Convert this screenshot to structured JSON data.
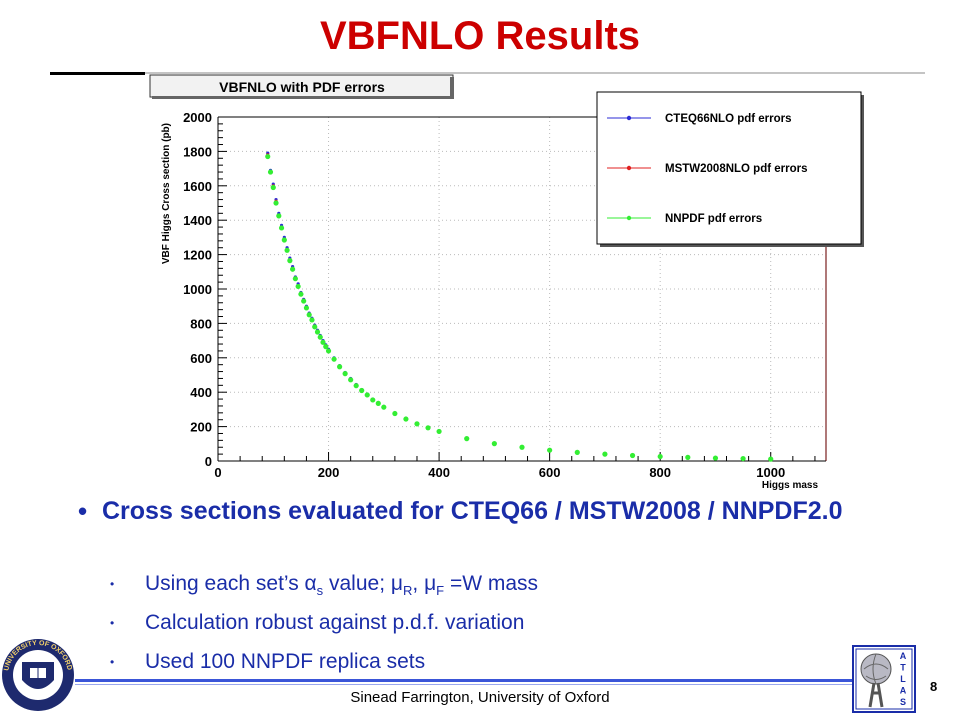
{
  "slide": {
    "title": "VBFNLO Results",
    "footer": "Sinead Farrington, University of Oxford",
    "page_number": "8",
    "bullets": {
      "main": "Cross sections evaluated for CTEQ66 / MSTW2008 / NNPDF2.0",
      "sub1_pre": "Using each set’s ",
      "sub1_alpha": "α",
      "sub1_alpha_sub": "s",
      "sub1_mid": " value; ",
      "sub1_mu": "μ",
      "sub1_mu_sub": "R",
      "sub1_sep": ", ",
      "sub1_mu2": "μ",
      "sub1_mu2_sub": "F",
      "sub1_post": " =W mass",
      "sub2": "Calculation robust against p.d.f. variation",
      "sub3": "Used 100 NNPDF replica sets"
    },
    "logos": {
      "left": "oxford-seal",
      "left_text": "UNIVERSITY OF OXFORD",
      "right": "atlas-logo",
      "right_text": "ATLAS"
    }
  },
  "chart_data": {
    "type": "scatter",
    "title": "VBFNLO with PDF errors",
    "xlabel": "Higgs mass",
    "ylabel": "VBF Higgs Cross section (pb)",
    "xlim": [
      0,
      1100
    ],
    "ylim": [
      0,
      2000
    ],
    "xticks": [
      0,
      200,
      400,
      600,
      800,
      1000
    ],
    "yticks": [
      0,
      200,
      400,
      600,
      800,
      1000,
      1200,
      1400,
      1600,
      1800,
      2000
    ],
    "grid": true,
    "legend_position": "top-right",
    "series": [
      {
        "name": "CTEQ66NLO pdf errors",
        "color": "#2b2bd6",
        "x": [
          90,
          95,
          100,
          105,
          110,
          115,
          120,
          125,
          130,
          135,
          140,
          145,
          150,
          155,
          160,
          165,
          170,
          175,
          180,
          185,
          190,
          195,
          200,
          210,
          220,
          230,
          240,
          250,
          260,
          270,
          280,
          290,
          300,
          320,
          340,
          360,
          380,
          400,
          450,
          500,
          550,
          600,
          650,
          700,
          750,
          800,
          850,
          900,
          950,
          1000
        ],
        "y": [
          1790,
          1690,
          1610,
          1520,
          1440,
          1370,
          1300,
          1240,
          1180,
          1130,
          1070,
          1030,
          980,
          940,
          900,
          860,
          830,
          790,
          760,
          730,
          700,
          675,
          650,
          600,
          555,
          515,
          480,
          445,
          415,
          390,
          360,
          340,
          318,
          280,
          248,
          220,
          197,
          176,
          134,
          104,
          82,
          65,
          52,
          42,
          34,
          28,
          23,
          19,
          16,
          13
        ]
      },
      {
        "name": "MSTW2008NLO pdf errors",
        "color": "#e02020",
        "x": [
          90,
          95,
          100,
          105,
          110,
          115,
          120,
          125,
          130,
          135,
          140,
          145,
          150,
          155,
          160,
          165,
          170,
          175,
          180,
          185,
          190,
          195,
          200,
          210,
          220,
          230,
          240,
          250,
          260,
          270,
          280,
          290,
          300,
          320,
          340,
          360,
          380,
          400,
          450,
          500,
          550,
          600,
          650,
          700,
          750,
          800,
          850,
          900,
          950,
          1000
        ],
        "y": [
          1780,
          1680,
          1600,
          1510,
          1430,
          1360,
          1290,
          1230,
          1170,
          1120,
          1065,
          1020,
          975,
          935,
          895,
          855,
          825,
          785,
          755,
          725,
          695,
          670,
          645,
          595,
          550,
          510,
          475,
          440,
          412,
          386,
          357,
          337,
          315,
          278,
          246,
          218,
          195,
          174,
          132,
          103,
          81,
          64,
          51,
          41,
          33,
          27,
          22,
          18,
          15,
          12
        ]
      },
      {
        "name": "NNPDF pdf errors",
        "color": "#33ee33",
        "x": [
          90,
          95,
          100,
          105,
          110,
          115,
          120,
          125,
          130,
          135,
          140,
          145,
          150,
          155,
          160,
          165,
          170,
          175,
          180,
          185,
          190,
          195,
          200,
          210,
          220,
          230,
          240,
          250,
          260,
          270,
          280,
          290,
          300,
          320,
          340,
          360,
          380,
          400,
          450,
          500,
          550,
          600,
          650,
          700,
          750,
          800,
          850,
          900,
          950,
          1000
        ],
        "y": [
          1770,
          1680,
          1590,
          1500,
          1425,
          1355,
          1285,
          1225,
          1165,
          1115,
          1060,
          1015,
          970,
          930,
          890,
          850,
          820,
          780,
          750,
          720,
          690,
          665,
          640,
          592,
          548,
          508,
          472,
          438,
          410,
          384,
          355,
          335,
          313,
          276,
          244,
          216,
          193,
          172,
          130,
          101,
          80,
          63,
          50,
          40,
          32,
          26,
          21,
          17,
          14,
          11
        ]
      }
    ]
  }
}
